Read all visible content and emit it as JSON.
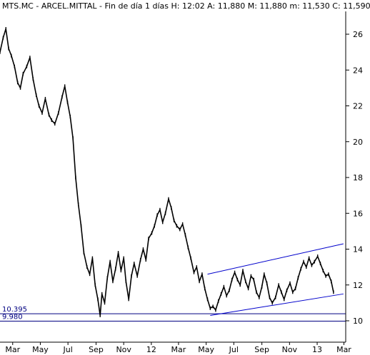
{
  "header": {
    "title": "MTS.MC - ARCEL.MITTAL - Fin de día 1 días H: 12:02  A: 11,880  M: 11,880  m: 11,530  C: 11,590"
  },
  "colors": {
    "price": "#000000",
    "channel": "#0000cc",
    "support": "#000080",
    "frame": "#000000",
    "background": "#ffffff"
  },
  "chart_data": {
    "type": "line",
    "title": "MTS.MC - ARCEL.MITTAL - Fin de día 1 días H: 12:02  A: 11,880  M: 11,880  m: 11,530  C: 11,590",
    "xlabel": "",
    "ylabel": "",
    "ylim": [
      9.6,
      27.4
    ],
    "xlim": [
      "2011-02-01",
      "2013-03-05"
    ],
    "y_ticks": [
      10,
      12,
      14,
      16,
      18,
      20,
      22,
      24,
      26
    ],
    "x_ticks": [
      {
        "date": "2011-03-01",
        "label": "Mar"
      },
      {
        "date": "2011-05-01",
        "label": "May"
      },
      {
        "date": "2011-07-01",
        "label": "Jul"
      },
      {
        "date": "2011-09-01",
        "label": "Sep"
      },
      {
        "date": "2011-11-01",
        "label": "Nov"
      },
      {
        "date": "2012-01-01",
        "label": "12"
      },
      {
        "date": "2012-03-01",
        "label": "Mar"
      },
      {
        "date": "2012-05-01",
        "label": "May"
      },
      {
        "date": "2012-07-01",
        "label": "Jul"
      },
      {
        "date": "2012-09-01",
        "label": "Sep"
      },
      {
        "date": "2012-11-01",
        "label": "Nov"
      },
      {
        "date": "2013-01-01",
        "label": "13"
      },
      {
        "date": "2013-03-01",
        "label": "Mar"
      }
    ],
    "series": [
      {
        "points": [
          [
            "2011-02-01",
            25.0
          ],
          [
            "2011-02-08",
            25.8
          ],
          [
            "2011-02-14",
            26.3
          ],
          [
            "2011-02-20",
            25.2
          ],
          [
            "2011-02-26",
            24.8
          ],
          [
            "2011-03-05",
            24.2
          ],
          [
            "2011-03-12",
            23.3
          ],
          [
            "2011-03-18",
            23.0
          ],
          [
            "2011-03-24",
            23.8
          ],
          [
            "2011-04-01",
            24.2
          ],
          [
            "2011-04-08",
            24.7
          ],
          [
            "2011-04-15",
            23.5
          ],
          [
            "2011-04-22",
            22.6
          ],
          [
            "2011-04-28",
            22.0
          ],
          [
            "2011-05-05",
            21.6
          ],
          [
            "2011-05-12",
            22.4
          ],
          [
            "2011-05-20",
            21.5
          ],
          [
            "2011-05-26",
            21.2
          ],
          [
            "2011-06-02",
            21.0
          ],
          [
            "2011-06-10",
            21.6
          ],
          [
            "2011-06-18",
            22.5
          ],
          [
            "2011-06-24",
            23.1
          ],
          [
            "2011-06-30",
            22.2
          ],
          [
            "2011-07-06",
            21.4
          ],
          [
            "2011-07-12",
            20.2
          ],
          [
            "2011-07-18",
            18.0
          ],
          [
            "2011-07-24",
            16.5
          ],
          [
            "2011-07-30",
            15.3
          ],
          [
            "2011-08-05",
            13.8
          ],
          [
            "2011-08-12",
            13.0
          ],
          [
            "2011-08-18",
            12.6
          ],
          [
            "2011-08-24",
            13.5
          ],
          [
            "2011-08-30",
            12.0
          ],
          [
            "2011-09-05",
            11.2
          ],
          [
            "2011-09-10",
            10.3
          ],
          [
            "2011-09-14",
            11.5
          ],
          [
            "2011-09-20",
            11.0
          ],
          [
            "2011-09-26",
            12.4
          ],
          [
            "2011-10-02",
            13.3
          ],
          [
            "2011-10-08",
            12.2
          ],
          [
            "2011-10-14",
            12.9
          ],
          [
            "2011-10-20",
            13.8
          ],
          [
            "2011-10-26",
            12.8
          ],
          [
            "2011-11-01",
            13.5
          ],
          [
            "2011-11-06",
            12.2
          ],
          [
            "2011-11-12",
            11.2
          ],
          [
            "2011-11-18",
            12.5
          ],
          [
            "2011-11-24",
            13.2
          ],
          [
            "2011-12-01",
            12.5
          ],
          [
            "2011-12-08",
            13.4
          ],
          [
            "2011-12-14",
            14.0
          ],
          [
            "2011-12-20",
            13.4
          ],
          [
            "2011-12-26",
            14.6
          ],
          [
            "2012-01-02",
            14.9
          ],
          [
            "2012-01-08",
            15.3
          ],
          [
            "2012-01-14",
            15.9
          ],
          [
            "2012-01-20",
            16.2
          ],
          [
            "2012-01-26",
            15.5
          ],
          [
            "2012-02-01",
            16.0
          ],
          [
            "2012-02-08",
            16.8
          ],
          [
            "2012-02-14",
            16.3
          ],
          [
            "2012-02-20",
            15.6
          ],
          [
            "2012-02-26",
            15.3
          ],
          [
            "2012-03-04",
            15.1
          ],
          [
            "2012-03-10",
            15.4
          ],
          [
            "2012-03-16",
            14.8
          ],
          [
            "2012-03-22",
            14.1
          ],
          [
            "2012-03-28",
            13.5
          ],
          [
            "2012-04-04",
            12.7
          ],
          [
            "2012-04-10",
            13.0
          ],
          [
            "2012-04-16",
            12.2
          ],
          [
            "2012-04-22",
            12.6
          ],
          [
            "2012-04-28",
            11.8
          ],
          [
            "2012-05-04",
            11.2
          ],
          [
            "2012-05-10",
            10.7
          ],
          [
            "2012-05-16",
            10.8
          ],
          [
            "2012-05-22",
            10.6
          ],
          [
            "2012-05-28",
            11.1
          ],
          [
            "2012-06-03",
            11.5
          ],
          [
            "2012-06-09",
            11.9
          ],
          [
            "2012-06-15",
            11.4
          ],
          [
            "2012-06-21",
            11.7
          ],
          [
            "2012-06-27",
            12.3
          ],
          [
            "2012-07-03",
            12.7
          ],
          [
            "2012-07-09",
            12.3
          ],
          [
            "2012-07-15",
            12.0
          ],
          [
            "2012-07-21",
            12.8
          ],
          [
            "2012-07-27",
            12.2
          ],
          [
            "2012-08-02",
            11.8
          ],
          [
            "2012-08-08",
            12.5
          ],
          [
            "2012-08-14",
            12.3
          ],
          [
            "2012-08-20",
            11.6
          ],
          [
            "2012-08-26",
            11.3
          ],
          [
            "2012-09-01",
            11.9
          ],
          [
            "2012-09-06",
            12.6
          ],
          [
            "2012-09-12",
            12.1
          ],
          [
            "2012-09-18",
            11.3
          ],
          [
            "2012-09-24",
            11.0
          ],
          [
            "2012-10-01",
            11.3
          ],
          [
            "2012-10-08",
            12.0
          ],
          [
            "2012-10-14",
            11.6
          ],
          [
            "2012-10-20",
            11.2
          ],
          [
            "2012-10-26",
            11.7
          ],
          [
            "2012-11-02",
            12.1
          ],
          [
            "2012-11-08",
            11.6
          ],
          [
            "2012-11-14",
            11.8
          ],
          [
            "2012-11-20",
            12.4
          ],
          [
            "2012-11-26",
            12.9
          ],
          [
            "2012-12-02",
            13.3
          ],
          [
            "2012-12-08",
            13.0
          ],
          [
            "2012-12-14",
            13.5
          ],
          [
            "2012-12-20",
            13.1
          ],
          [
            "2012-12-26",
            13.3
          ],
          [
            "2013-01-02",
            13.6
          ],
          [
            "2013-01-08",
            13.2
          ],
          [
            "2013-01-14",
            12.8
          ],
          [
            "2013-01-20",
            12.5
          ],
          [
            "2013-01-26",
            12.6
          ],
          [
            "2013-02-01",
            12.2
          ],
          [
            "2013-02-06",
            11.6
          ]
        ]
      }
    ],
    "channel": [
      {
        "from": [
          "2012-05-04",
          12.6
        ],
        "to": [
          "2013-02-28",
          14.3
        ]
      },
      {
        "from": [
          "2012-05-10",
          10.3
        ],
        "to": [
          "2013-02-28",
          11.5
        ]
      }
    ],
    "levels": [
      {
        "value": 10.395,
        "label": "10.395"
      },
      {
        "value": 9.98,
        "label": "9.980"
      }
    ],
    "grid": false,
    "legend": "none"
  }
}
